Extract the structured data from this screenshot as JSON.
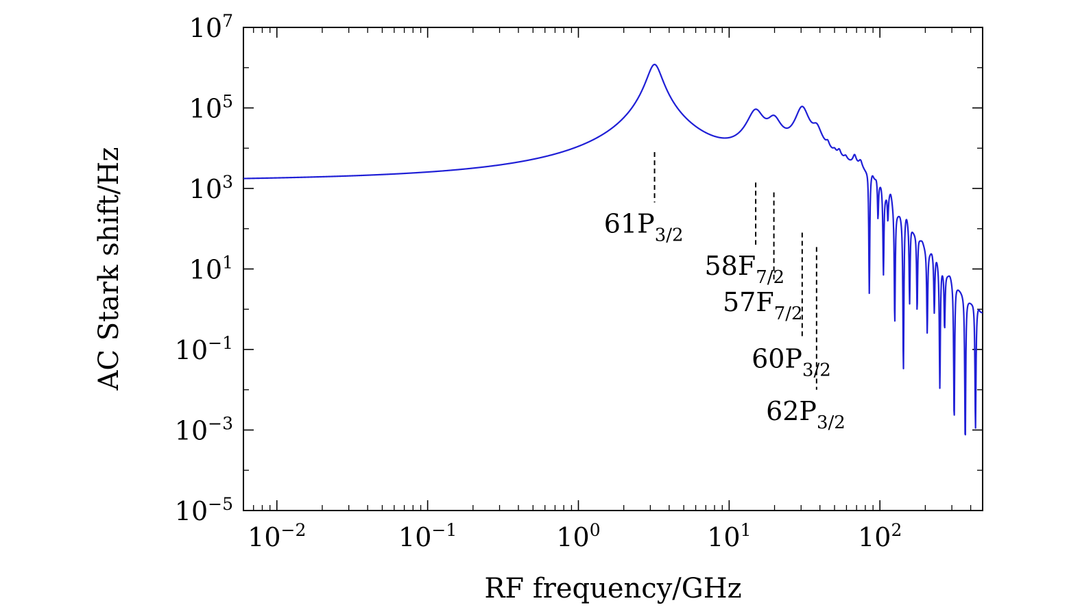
{
  "chart_data": {
    "type": "line",
    "title": "",
    "xlabel": "RF frequency/GHz",
    "ylabel": "AC Stark shift/Hz",
    "x_scale": "log",
    "y_scale": "log",
    "xlim": [
      0.006,
      480
    ],
    "ylim": [
      1e-05,
      10000000.0
    ],
    "grid": false,
    "x_ticks": [
      {
        "value": 0.01,
        "base": "10",
        "exp": "−2"
      },
      {
        "value": 0.1,
        "base": "10",
        "exp": "−1"
      },
      {
        "value": 1,
        "base": "10",
        "exp": "0"
      },
      {
        "value": 10,
        "base": "10",
        "exp": "1"
      },
      {
        "value": 100,
        "base": "10",
        "exp": "2"
      }
    ],
    "y_ticks": [
      {
        "value": 10000000.0,
        "base": "10",
        "exp": "7"
      },
      {
        "value": 100000.0,
        "base": "10",
        "exp": "5"
      },
      {
        "value": 1000.0,
        "base": "10",
        "exp": "3"
      },
      {
        "value": 10,
        "base": "10",
        "exp": "1"
      },
      {
        "value": 0.1,
        "base": "10",
        "exp": "−1"
      },
      {
        "value": 0.001,
        "base": "10",
        "exp": "−3"
      },
      {
        "value": 1e-05,
        "base": "10",
        "exp": "−5"
      }
    ],
    "series": [
      {
        "name": "AC Stark shift",
        "color": "#1f1fd6",
        "baseline": 1400,
        "resonances": [
          {
            "f": 3.2,
            "peak": 1200000.0,
            "width": 0.045
          },
          {
            "f": 15.0,
            "peak": 80000.0,
            "width": 0.05
          },
          {
            "f": 19.8,
            "peak": 45000.0,
            "width": 0.045
          },
          {
            "f": 30.5,
            "peak": 100000.0,
            "width": 0.04
          },
          {
            "f": 38.0,
            "peak": 22000.0,
            "width": 0.03
          }
        ]
      }
    ],
    "annotations": [
      {
        "name": "annotation-61P",
        "main": "61P",
        "sub": "3/2",
        "freq": 3.2,
        "y_top": 8000,
        "y_bottom": 450
      },
      {
        "name": "annotation-58F",
        "main": "58F",
        "sub": "7/2",
        "freq": 15.0,
        "y_top": 1400,
        "y_bottom": 40
      },
      {
        "name": "annotation-57F",
        "main": "57F",
        "sub": "7/2",
        "freq": 19.8,
        "y_top": 800,
        "y_bottom": 5
      },
      {
        "name": "annotation-60P",
        "main": "60P",
        "sub": "3/2",
        "freq": 30.5,
        "y_top": 80,
        "y_bottom": 0.2
      },
      {
        "name": "annotation-62P",
        "main": "62P",
        "sub": "3/2",
        "freq": 38.0,
        "y_top": 35,
        "y_bottom": 0.01
      }
    ]
  }
}
